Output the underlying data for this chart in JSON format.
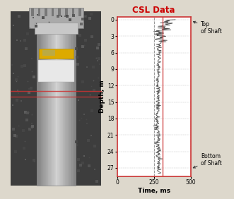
{
  "title": "CSL Data",
  "title_color": "#cc0000",
  "xlabel": "Time, ms",
  "ylabel": "Depth, m",
  "xlim": [
    0,
    500
  ],
  "ylim": [
    28.5,
    -0.5
  ],
  "xticks": [
    0,
    250,
    500
  ],
  "yticks": [
    0,
    3,
    6,
    9,
    12,
    15,
    18,
    21,
    24,
    27
  ],
  "grid_color": "#bbbbbb",
  "border_color": "#cc3333",
  "ref_line_x": 310,
  "ref_line_color": "#cc3333",
  "dashed_line_x": 250,
  "dashed_line_color": "#999999",
  "top_of_shaft_depth": 0.2,
  "bottom_of_shaft_depth": 27.2,
  "annotation_top": "Top\nof Shaft",
  "annotation_bottom": "Bottom\nof Shaft",
  "fig_bg_color": "#ddd8cc",
  "plot_bg_color": "#ffffff",
  "soil_color": "#3d3d3d",
  "shaft_color_center": "#d0d0d0",
  "shaft_color_edge": "#888888",
  "yellow_band_color": "#ddaa00",
  "red_line_color": "#cc3333"
}
